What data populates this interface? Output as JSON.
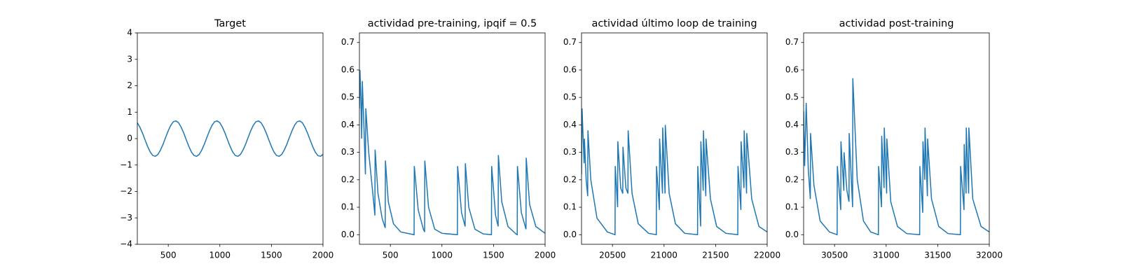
{
  "chart_data": [
    {
      "type": "line",
      "title": "Target",
      "color": "#1f77b4",
      "x": [
        200,
        225,
        250,
        275,
        300,
        325,
        350,
        375,
        400,
        425,
        450,
        475,
        500,
        525,
        550,
        575,
        600,
        625,
        650,
        675,
        700,
        725,
        750,
        775,
        800,
        825,
        850,
        875,
        900,
        925,
        950,
        975,
        1000,
        1025,
        1050,
        1075,
        1100,
        1125,
        1150,
        1175,
        1200,
        1225,
        1250,
        1275,
        1300,
        1325,
        1350,
        1375,
        1400,
        1425,
        1450,
        1475,
        1500,
        1525,
        1550,
        1575,
        1600,
        1625,
        1650,
        1675,
        1700,
        1725,
        1750,
        1775,
        1800,
        1825,
        1850,
        1875,
        1900,
        1925,
        1950,
        1975,
        2000
      ],
      "values": [
        0.6,
        0.43,
        0.21,
        -0.05,
        -0.3,
        -0.51,
        -0.64,
        -0.67,
        -0.6,
        -0.43,
        -0.21,
        0.05,
        0.3,
        0.51,
        0.64,
        0.67,
        0.6,
        0.43,
        0.21,
        -0.05,
        -0.3,
        -0.51,
        -0.64,
        -0.67,
        -0.6,
        -0.43,
        -0.21,
        0.05,
        0.3,
        0.51,
        0.64,
        0.67,
        0.6,
        0.43,
        0.21,
        -0.05,
        -0.3,
        -0.51,
        -0.64,
        -0.67,
        -0.6,
        -0.43,
        -0.21,
        0.05,
        0.3,
        0.51,
        0.64,
        0.67,
        0.6,
        0.43,
        0.21,
        -0.05,
        -0.3,
        -0.51,
        -0.64,
        -0.67,
        -0.6,
        -0.43,
        -0.21,
        0.05,
        0.3,
        0.51,
        0.64,
        0.67,
        0.6,
        0.43,
        0.21,
        -0.05,
        -0.3,
        -0.51,
        -0.64,
        -0.67,
        -0.6
      ],
      "xlim": [
        200,
        2000
      ],
      "xticks": [
        500,
        1000,
        1500,
        2000
      ],
      "ylim": [
        -4,
        4
      ],
      "yticks": [
        {
          "value": -4,
          "label": "−4"
        },
        {
          "value": -3,
          "label": "−3"
        },
        {
          "value": -2,
          "label": "−2"
        },
        {
          "value": -1,
          "label": "−1"
        },
        0,
        1,
        2,
        3,
        4
      ]
    },
    {
      "type": "line",
      "title": "actividad pre-training, ipqif = 0.5",
      "color": "#1f77b4",
      "x": [
        200,
        205,
        215,
        222,
        228,
        245,
        258,
        262,
        290,
        330,
        350,
        352,
        380,
        420,
        450,
        452,
        480,
        530,
        600,
        730,
        732,
        770,
        820,
        832,
        834,
        870,
        930,
        1000,
        1150,
        1152,
        1190,
        1225,
        1227,
        1260,
        1320,
        1400,
        1480,
        1482,
        1520,
        1545,
        1547,
        1580,
        1640,
        1720,
        1730,
        1732,
        1770,
        1815,
        1817,
        1850,
        1910,
        2000
      ],
      "values": [
        0.46,
        0.6,
        0.48,
        0.35,
        0.56,
        0.38,
        0.22,
        0.46,
        0.3,
        0.15,
        0.07,
        0.31,
        0.15,
        0.06,
        0.025,
        0.27,
        0.12,
        0.04,
        0.01,
        0.0,
        0.25,
        0.09,
        0.02,
        0.01,
        0.27,
        0.1,
        0.02,
        0.005,
        0.0,
        0.25,
        0.08,
        0.03,
        0.26,
        0.1,
        0.02,
        0.003,
        0.0,
        0.25,
        0.07,
        0.03,
        0.29,
        0.12,
        0.03,
        0.002,
        0.0,
        0.25,
        0.08,
        0.02,
        0.28,
        0.11,
        0.03,
        0.005
      ],
      "xlim": [
        200,
        2000
      ],
      "xticks": [
        500,
        1000,
        1500,
        2000
      ],
      "ylim": [
        -0.035,
        0.735
      ],
      "yticks": [
        {
          "value": 0,
          "label": "0.0"
        },
        0.1,
        0.2,
        0.3,
        0.4,
        0.5,
        0.6,
        0.7
      ]
    },
    {
      "type": "line",
      "title": "actividad último loop de training",
      "color": "#1f77b4",
      "x": [
        20200,
        20205,
        20225,
        20228,
        20245,
        20260,
        20262,
        20290,
        20350,
        20450,
        20525,
        20527,
        20550,
        20552,
        20580,
        20600,
        20602,
        20630,
        20650,
        20652,
        20690,
        20750,
        20850,
        20925,
        20927,
        20955,
        20957,
        20985,
        20987,
        21010,
        21012,
        21050,
        21110,
        21200,
        21325,
        21327,
        21355,
        21357,
        21380,
        21382,
        21405,
        21407,
        21450,
        21510,
        21600,
        21715,
        21717,
        21745,
        21747,
        21775,
        21777,
        21800,
        21802,
        21850,
        21920,
        22000
      ],
      "values": [
        0.22,
        0.46,
        0.26,
        0.35,
        0.2,
        0.14,
        0.38,
        0.2,
        0.06,
        0.01,
        0.0,
        0.25,
        0.1,
        0.34,
        0.17,
        0.15,
        0.32,
        0.17,
        0.15,
        0.38,
        0.15,
        0.04,
        0.005,
        0.0,
        0.25,
        0.09,
        0.35,
        0.15,
        0.39,
        0.15,
        0.4,
        0.15,
        0.04,
        0.005,
        0.0,
        0.25,
        0.03,
        0.34,
        0.16,
        0.38,
        0.14,
        0.35,
        0.13,
        0.03,
        0.005,
        0.0,
        0.25,
        0.09,
        0.34,
        0.17,
        0.38,
        0.15,
        0.37,
        0.13,
        0.03,
        0.01
      ],
      "xlim": [
        20200,
        22000
      ],
      "xticks": [
        20500,
        21000,
        21500,
        22000
      ],
      "ylim": [
        -0.035,
        0.735
      ],
      "yticks": [
        {
          "value": 0,
          "label": "0.0"
        },
        0.1,
        0.2,
        0.3,
        0.4,
        0.5,
        0.6,
        0.7
      ]
    },
    {
      "type": "line",
      "title": "actividad post-training",
      "color": "#1f77b4",
      "x": [
        30200,
        30210,
        30225,
        30245,
        30265,
        30267,
        30300,
        30360,
        30450,
        30525,
        30527,
        30560,
        30562,
        30590,
        30592,
        30620,
        30640,
        30642,
        30665,
        30675,
        30677,
        30720,
        30780,
        30850,
        30925,
        30927,
        30955,
        30957,
        30980,
        30982,
        31005,
        31007,
        31045,
        31110,
        31200,
        31325,
        31327,
        31355,
        31357,
        31375,
        31377,
        31400,
        31402,
        31440,
        31510,
        31600,
        31720,
        31722,
        31755,
        31757,
        31775,
        31777,
        31800,
        31802,
        31840,
        31920,
        32000
      ],
      "values": [
        0.45,
        0.25,
        0.48,
        0.24,
        0.13,
        0.37,
        0.18,
        0.05,
        0.01,
        0.0,
        0.25,
        0.09,
        0.34,
        0.16,
        0.3,
        0.16,
        0.12,
        0.37,
        0.18,
        0.1,
        0.57,
        0.2,
        0.05,
        0.01,
        0.0,
        0.25,
        0.1,
        0.36,
        0.17,
        0.39,
        0.15,
        0.35,
        0.12,
        0.03,
        0.004,
        0.0,
        0.25,
        0.08,
        0.34,
        0.2,
        0.39,
        0.14,
        0.35,
        0.13,
        0.03,
        0.004,
        0.0,
        0.25,
        0.09,
        0.33,
        0.15,
        0.39,
        0.15,
        0.39,
        0.13,
        0.03,
        0.01
      ],
      "xlim": [
        30200,
        32000
      ],
      "xticks": [
        30500,
        31000,
        31500,
        32000
      ],
      "ylim": [
        -0.035,
        0.735
      ],
      "yticks": [
        {
          "value": 0,
          "label": "0.0"
        },
        0.1,
        0.2,
        0.3,
        0.4,
        0.5,
        0.6,
        0.7
      ]
    }
  ]
}
